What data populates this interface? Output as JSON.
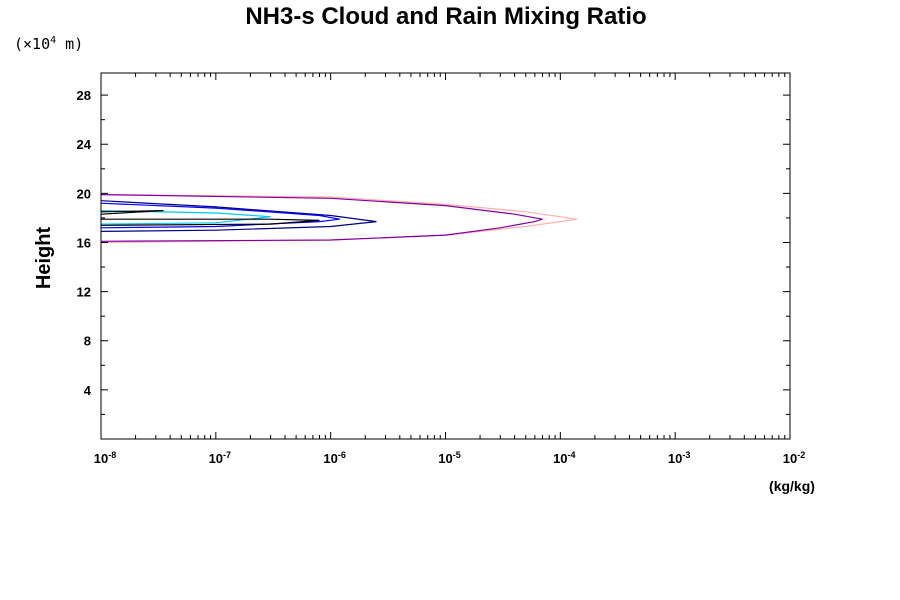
{
  "chart_data": {
    "type": "line",
    "title": "NH3-s Cloud and Rain Mixing Ratio",
    "y_unit_prefix": "(×10",
    "y_unit_exponent": "4",
    "y_unit_suffix": " m)",
    "ylabel": "Height",
    "xlabel": "(kg/kg)",
    "x_scale": "log",
    "xlim": [
      1e-08,
      0.01
    ],
    "ylim": [
      0,
      29.8
    ],
    "y_ticks": [
      4,
      8,
      12,
      16,
      20,
      24,
      28
    ],
    "y_tick_labels": [
      "4",
      "8",
      "12",
      "16",
      "20",
      "24",
      "28"
    ],
    "x_ticks": [
      {
        "base": "10",
        "exp": "-8"
      },
      {
        "base": "10",
        "exp": "-7"
      },
      {
        "base": "10",
        "exp": "-6"
      },
      {
        "base": "10",
        "exp": "-5"
      },
      {
        "base": "10",
        "exp": "-4"
      },
      {
        "base": "10",
        "exp": "-3"
      },
      {
        "base": "10",
        "exp": "-2"
      }
    ],
    "grid": false,
    "series": [
      {
        "color": "#ffb0b0",
        "points": [
          [
            1e-08,
            19.9
          ],
          [
            1e-06,
            19.7
          ],
          [
            1e-05,
            19.1
          ],
          [
            5e-05,
            18.5
          ],
          [
            0.00014,
            17.9
          ],
          [
            5e-05,
            17.3
          ],
          [
            1e-05,
            16.6
          ],
          [
            1e-06,
            16.2
          ],
          [
            1e-08,
            16.0
          ]
        ]
      },
      {
        "color": "#8000a0",
        "points": [
          [
            1e-08,
            19.9
          ],
          [
            1e-06,
            19.6
          ],
          [
            1e-05,
            19.0
          ],
          [
            4e-05,
            18.3
          ],
          [
            7e-05,
            17.9
          ],
          [
            6e-05,
            17.7
          ],
          [
            3e-05,
            17.2
          ],
          [
            1e-05,
            16.6
          ],
          [
            1e-06,
            16.2
          ],
          [
            1e-08,
            16.1
          ]
        ]
      },
      {
        "color": "#000080",
        "points": [
          [
            1e-08,
            19.4
          ],
          [
            1e-07,
            18.9
          ],
          [
            1e-06,
            18.2
          ],
          [
            2.5e-06,
            17.7
          ],
          [
            1e-06,
            17.3
          ],
          [
            1e-07,
            17.0
          ],
          [
            1e-08,
            16.9
          ]
        ]
      },
      {
        "color": "#0000ff",
        "points": [
          [
            1e-08,
            19.2
          ],
          [
            1e-07,
            18.8
          ],
          [
            8e-07,
            18.2
          ],
          [
            1.2e-06,
            17.9
          ],
          [
            8e-07,
            17.7
          ],
          [
            1e-07,
            17.3
          ],
          [
            1e-08,
            17.2
          ]
        ]
      },
      {
        "color": "#00c8ff",
        "points": [
          [
            1e-08,
            18.6
          ],
          [
            1e-07,
            18.4
          ],
          [
            3e-07,
            18.1
          ],
          [
            1e-07,
            17.6
          ],
          [
            1e-08,
            17.5
          ]
        ]
      },
      {
        "color": "#000000",
        "points": [
          [
            1e-08,
            18.5
          ],
          [
            3.5e-08,
            18.6
          ],
          [
            1e-08,
            18.3
          ]
        ]
      },
      {
        "color": "#000000",
        "points": [
          [
            1e-08,
            17.9
          ],
          [
            3e-07,
            17.9
          ],
          [
            8e-07,
            17.8
          ],
          [
            3e-07,
            17.5
          ],
          [
            1e-08,
            17.4
          ]
        ]
      }
    ]
  }
}
